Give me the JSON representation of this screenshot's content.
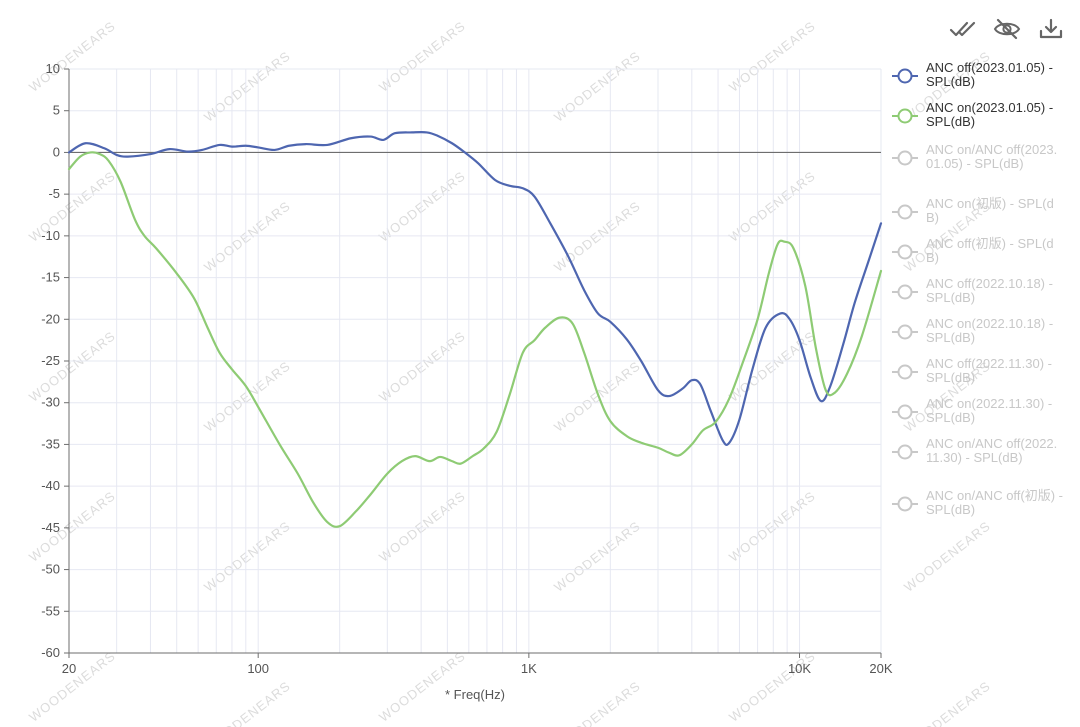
{
  "watermark": "WOODENEARS",
  "toolbar": {
    "items": [
      {
        "name": "select-all-icon",
        "title": "select all"
      },
      {
        "name": "eye-off-icon",
        "title": "hide"
      },
      {
        "name": "download-icon",
        "title": "download"
      }
    ]
  },
  "colors": {
    "series_on": [
      "#4e66b0",
      "#8ecb74"
    ],
    "legend_off": "#c8c8c8",
    "grid": "#e6e8f2",
    "axis": "#6e6e6e"
  },
  "chart_data": {
    "type": "line",
    "xscale": "log",
    "xlabel": "* Freq(Hz)",
    "ylabel": "",
    "xlim": [
      20,
      20000
    ],
    "ylim": [
      -60,
      10
    ],
    "yticks": [
      10,
      5,
      0,
      -5,
      -10,
      -15,
      -20,
      -25,
      -30,
      -35,
      -40,
      -45,
      -50,
      -55,
      -60
    ],
    "xticks": [
      {
        "value": 20,
        "label": "20"
      },
      {
        "value": 100,
        "label": "100"
      },
      {
        "value": 1000,
        "label": "1K"
      },
      {
        "value": 10000,
        "label": "10K"
      },
      {
        "value": 20000,
        "label": "20K"
      }
    ],
    "grid": true,
    "legend_position": "right",
    "series": [
      {
        "name": "ANC off(2023.01.05) - SPL(dB)",
        "visible": true,
        "points": [
          [
            20,
            0
          ],
          [
            23,
            1.1
          ],
          [
            27,
            0.5
          ],
          [
            30,
            -0.3
          ],
          [
            33,
            -0.5
          ],
          [
            40,
            -0.2
          ],
          [
            47,
            0.4
          ],
          [
            55,
            0.1
          ],
          [
            62,
            0.3
          ],
          [
            72,
            0.9
          ],
          [
            80,
            0.7
          ],
          [
            90,
            0.8
          ],
          [
            100,
            0.6
          ],
          [
            115,
            0.3
          ],
          [
            130,
            0.8
          ],
          [
            150,
            1
          ],
          [
            180,
            0.9
          ],
          [
            220,
            1.7
          ],
          [
            260,
            1.9
          ],
          [
            290,
            1.5
          ],
          [
            320,
            2.3
          ],
          [
            370,
            2.4
          ],
          [
            420,
            2.4
          ],
          [
            460,
            2
          ],
          [
            520,
            1.1
          ],
          [
            580,
            0
          ],
          [
            650,
            -1.3
          ],
          [
            750,
            -3.3
          ],
          [
            850,
            -4
          ],
          [
            950,
            -4.3
          ],
          [
            1050,
            -5.3
          ],
          [
            1200,
            -8.5
          ],
          [
            1400,
            -12.5
          ],
          [
            1600,
            -16.5
          ],
          [
            1800,
            -19.3
          ],
          [
            2000,
            -20.3
          ],
          [
            2300,
            -22.4
          ],
          [
            2600,
            -25
          ],
          [
            3000,
            -28.5
          ],
          [
            3300,
            -29.2
          ],
          [
            3700,
            -28.3
          ],
          [
            4000,
            -27.3
          ],
          [
            4300,
            -27.8
          ],
          [
            4700,
            -31
          ],
          [
            5200,
            -34.5
          ],
          [
            5500,
            -34.8
          ],
          [
            6000,
            -32
          ],
          [
            6700,
            -26
          ],
          [
            7500,
            -21
          ],
          [
            8500,
            -19.3
          ],
          [
            9200,
            -20
          ],
          [
            10000,
            -22.5
          ],
          [
            11000,
            -27
          ],
          [
            12000,
            -29.8
          ],
          [
            13000,
            -28
          ],
          [
            14500,
            -23
          ],
          [
            16000,
            -18
          ],
          [
            18000,
            -13
          ],
          [
            20000,
            -8.5
          ]
        ]
      },
      {
        "name": "ANC on(2023.01.05) - SPL(dB)",
        "visible": true,
        "points": [
          [
            20,
            -2
          ],
          [
            22,
            -0.5
          ],
          [
            24,
            0
          ],
          [
            26,
            -0.2
          ],
          [
            28,
            -1
          ],
          [
            31,
            -3.5
          ],
          [
            35,
            -8
          ],
          [
            38,
            -10
          ],
          [
            42,
            -11.5
          ],
          [
            50,
            -14.5
          ],
          [
            58,
            -17.5
          ],
          [
            65,
            -21
          ],
          [
            72,
            -24
          ],
          [
            80,
            -26
          ],
          [
            90,
            -28
          ],
          [
            100,
            -30.5
          ],
          [
            120,
            -35
          ],
          [
            140,
            -38.5
          ],
          [
            160,
            -42
          ],
          [
            180,
            -44.3
          ],
          [
            200,
            -44.8
          ],
          [
            230,
            -43
          ],
          [
            260,
            -41
          ],
          [
            300,
            -38.5
          ],
          [
            340,
            -37
          ],
          [
            380,
            -36.4
          ],
          [
            430,
            -37
          ],
          [
            470,
            -36.5
          ],
          [
            520,
            -37
          ],
          [
            560,
            -37.3
          ],
          [
            620,
            -36.4
          ],
          [
            680,
            -35.5
          ],
          [
            760,
            -33.5
          ],
          [
            850,
            -29
          ],
          [
            950,
            -24
          ],
          [
            1050,
            -22.5
          ],
          [
            1150,
            -21
          ],
          [
            1300,
            -19.8
          ],
          [
            1450,
            -20.5
          ],
          [
            1600,
            -24
          ],
          [
            1800,
            -29
          ],
          [
            2000,
            -32.2
          ],
          [
            2300,
            -34
          ],
          [
            2600,
            -34.8
          ],
          [
            3000,
            -35.4
          ],
          [
            3300,
            -36
          ],
          [
            3600,
            -36.3
          ],
          [
            4000,
            -35
          ],
          [
            4400,
            -33.3
          ],
          [
            4900,
            -32.3
          ],
          [
            5500,
            -29.5
          ],
          [
            6200,
            -25
          ],
          [
            7000,
            -20
          ],
          [
            7700,
            -14.5
          ],
          [
            8300,
            -11
          ],
          [
            8800,
            -10.7
          ],
          [
            9500,
            -11.5
          ],
          [
            10500,
            -16
          ],
          [
            11500,
            -23.5
          ],
          [
            12500,
            -28.5
          ],
          [
            13500,
            -28.8
          ],
          [
            15000,
            -26.5
          ],
          [
            17000,
            -22
          ],
          [
            20000,
            -14.2
          ]
        ]
      },
      {
        "name": "ANC on/ANC off(2023.01.05) - SPL(dB)",
        "visible": false,
        "points": []
      },
      {
        "name": "ANC on(初版) - SPL(dB)",
        "visible": false,
        "points": []
      },
      {
        "name": "ANC off(初版) - SPL(dB)",
        "visible": false,
        "points": []
      },
      {
        "name": "ANC off(2022.10.18) - SPL(dB)",
        "visible": false,
        "points": []
      },
      {
        "name": "ANC on(2022.10.18) - SPL(dB)",
        "visible": false,
        "points": []
      },
      {
        "name": "ANC off(2022.11.30) - SPL(dB)",
        "visible": false,
        "points": []
      },
      {
        "name": "ANC on(2022.11.30) - SPL(dB)",
        "visible": false,
        "points": []
      },
      {
        "name": "ANC on/ANC off(2022.11.30) - SPL(dB)",
        "visible": false,
        "points": []
      },
      {
        "name": "ANC on/ANC off(初版) - SPL(dB)",
        "visible": false,
        "points": []
      }
    ]
  }
}
